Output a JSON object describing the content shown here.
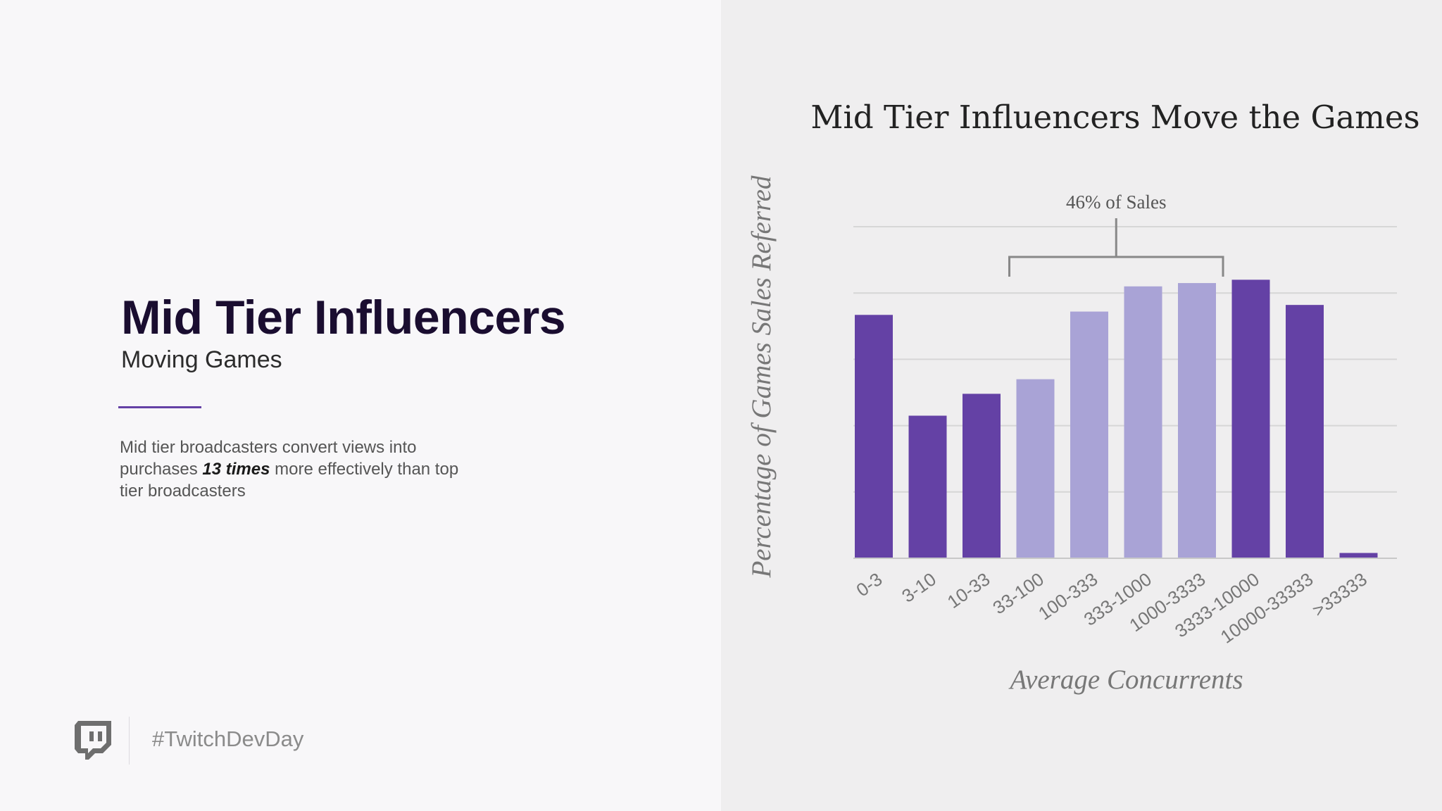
{
  "slide": {
    "title": "Mid Tier Influencers",
    "subtitle": "Moving Games",
    "body_prefix": "Mid tier broadcasters convert views into purchases ",
    "body_emphasis": "13 times",
    "body_suffix": " more effectively than top tier broadcasters",
    "hashtag": "#TwitchDevDay",
    "logo_icon": "twitch-glitch-icon"
  },
  "colors": {
    "accent": "#6441a5",
    "dark_bar": "#6441a5",
    "light_bar": "#a9a3d6",
    "title": "#1a0d30"
  },
  "chart_data": {
    "type": "bar",
    "title": "Mid Tier Influencers Move the Games",
    "xlabel": "Average Concurrents",
    "ylabel": "Percentage of Games Sales Referred",
    "categories": [
      "0-3",
      "3-10",
      "10-33",
      "33-100",
      "100-333",
      "333-1000",
      "1000-3333",
      "3333-10000",
      "10000-33333",
      ">33333"
    ],
    "values": [
      3.67,
      2.15,
      2.48,
      2.7,
      3.72,
      4.1,
      4.15,
      4.2,
      3.82,
      0.08
    ],
    "highlight": [
      false,
      false,
      false,
      true,
      true,
      true,
      true,
      false,
      false,
      false
    ],
    "ylim": [
      0,
      5
    ],
    "grid": true,
    "annotation": {
      "text": "46% of Sales",
      "from_category": "33-100",
      "to_category": "1000-3333"
    }
  }
}
